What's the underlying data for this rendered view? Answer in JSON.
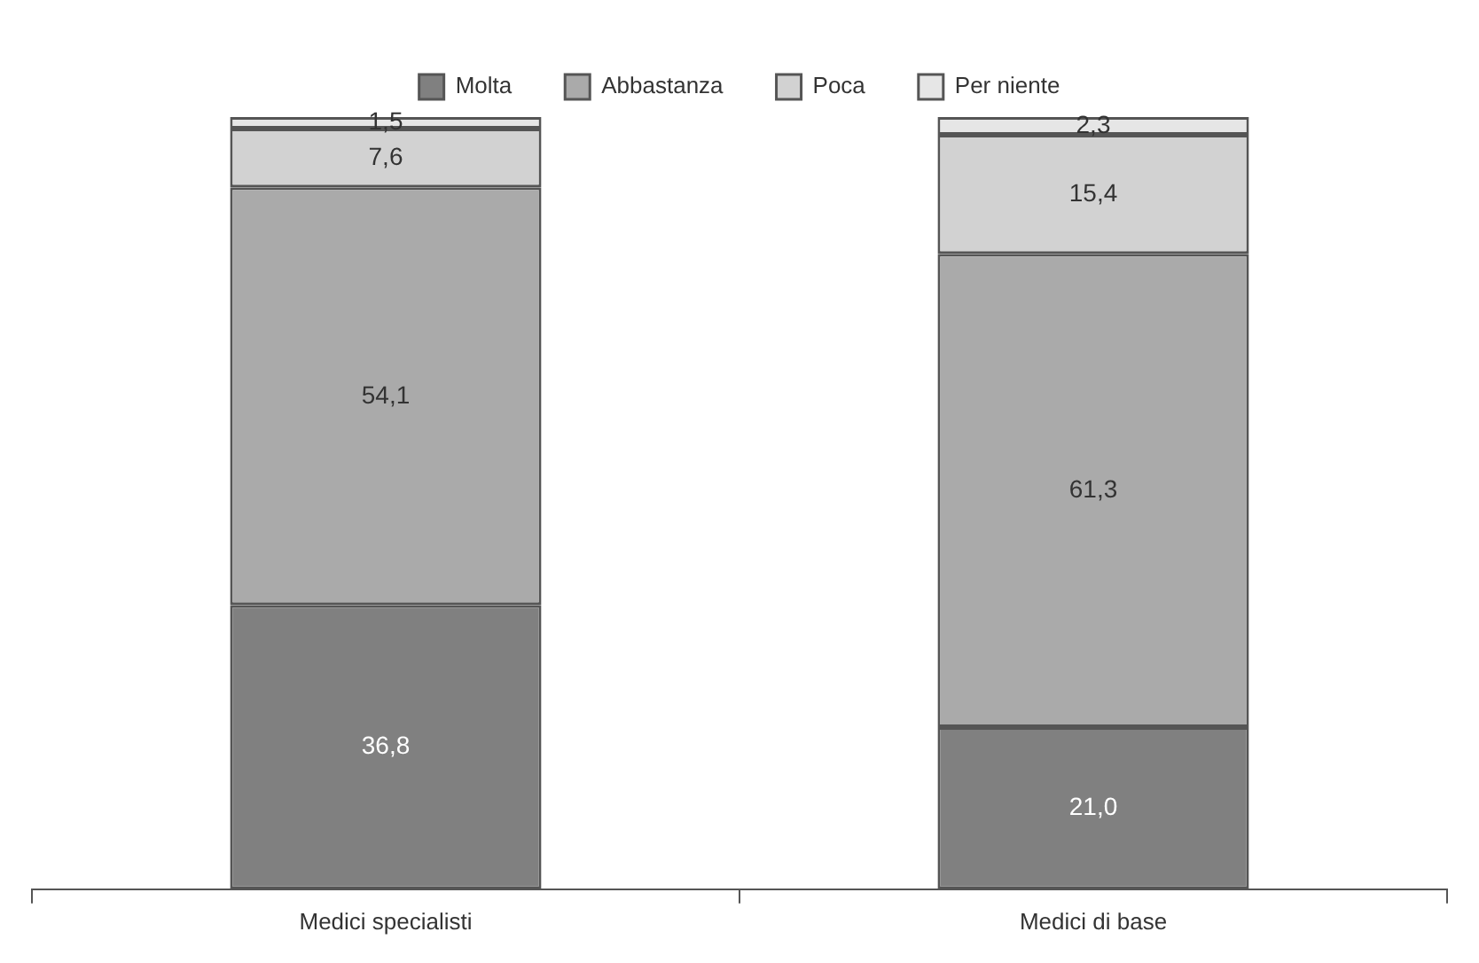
{
  "chart_data": {
    "type": "bar",
    "stacked": true,
    "categories": [
      "Medici specialisti",
      "Medici di base"
    ],
    "series": [
      {
        "name": "Molta",
        "color": "#808080",
        "values": [
          36.8,
          21.0
        ],
        "value_labels": [
          "36,8",
          "21,0"
        ]
      },
      {
        "name": "Abbastanza",
        "color": "#aaaaaa",
        "values": [
          54.1,
          61.3
        ],
        "value_labels": [
          "54,1",
          "61,3"
        ]
      },
      {
        "name": "Poca",
        "color": "#d2d2d2",
        "values": [
          7.6,
          15.4
        ],
        "value_labels": [
          "7,6",
          "15,4"
        ]
      },
      {
        "name": "Per niente",
        "color": "#e6e6e6",
        "values": [
          1.5,
          2.3
        ],
        "value_labels": [
          "1,5",
          "2,3"
        ]
      }
    ],
    "legend": "top",
    "grid": false
  }
}
